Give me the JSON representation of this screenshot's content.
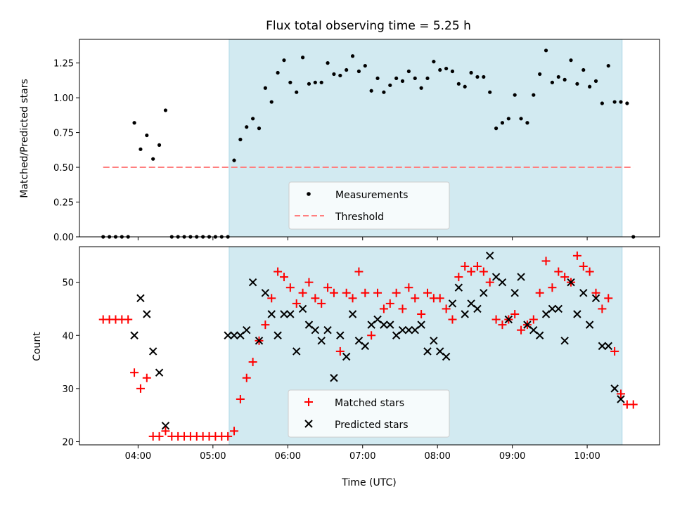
{
  "chart_data": [
    {
      "type": "scatter",
      "title": "Flux total observing time = 5.25 h",
      "xlabel": "",
      "ylabel": "Matched/Predicted stars",
      "xlim": [
        "03:13",
        "10:58"
      ],
      "ylim": [
        0,
        1.42
      ],
      "xticks": [
        "04:00",
        "05:00",
        "06:00",
        "07:00",
        "08:00",
        "09:00",
        "10:00"
      ],
      "yticks": [
        0.0,
        0.25,
        0.5,
        0.75,
        1.0,
        1.25
      ],
      "ytick_labels": [
        "0.00",
        "0.25",
        "0.50",
        "0.75",
        "1.00",
        "1.25"
      ],
      "shaded_region": {
        "start": "05:13",
        "end": "10:28",
        "color": "#add8e6"
      },
      "legend_position": "lower center",
      "series": [
        {
          "name": "Measurements",
          "kind": "scatter",
          "marker": "dot",
          "color": "#000000",
          "x": [
            "03:32",
            "03:37",
            "03:42",
            "03:47",
            "03:52",
            "03:57",
            "04:02",
            "04:07",
            "04:12",
            "04:17",
            "04:22",
            "04:27",
            "04:32",
            "04:37",
            "04:42",
            "04:47",
            "04:52",
            "04:57",
            "05:02",
            "05:07",
            "05:12",
            "05:17",
            "05:22",
            "05:27",
            "05:32",
            "05:37",
            "05:42",
            "05:47",
            "05:52",
            "05:57",
            "06:02",
            "06:07",
            "06:12",
            "06:17",
            "06:22",
            "06:27",
            "06:32",
            "06:37",
            "06:42",
            "06:47",
            "06:52",
            "06:57",
            "07:02",
            "07:07",
            "07:12",
            "07:17",
            "07:22",
            "07:27",
            "07:32",
            "07:37",
            "07:42",
            "07:47",
            "07:52",
            "07:57",
            "08:02",
            "08:07",
            "08:12",
            "08:17",
            "08:22",
            "08:27",
            "08:32",
            "08:37",
            "08:42",
            "08:47",
            "08:52",
            "08:57",
            "09:02",
            "09:07",
            "09:12",
            "09:17",
            "09:22",
            "09:27",
            "09:32",
            "09:37",
            "09:42",
            "09:47",
            "09:52",
            "09:57",
            "10:02",
            "10:07",
            "10:12",
            "10:17",
            "10:22",
            "10:27",
            "10:32",
            "10:37"
          ],
          "y": [
            0.0,
            0.0,
            0.0,
            0.0,
            0.0,
            0.82,
            0.63,
            0.73,
            0.56,
            0.66,
            0.91,
            0.0,
            0.0,
            0.0,
            0.0,
            0.0,
            0.0,
            0.0,
            0.0,
            0.0,
            0.0,
            0.55,
            0.7,
            0.79,
            0.85,
            0.78,
            1.07,
            0.97,
            1.18,
            1.27,
            1.11,
            1.04,
            1.29,
            1.1,
            1.11,
            1.11,
            1.25,
            1.17,
            1.16,
            1.2,
            1.3,
            1.19,
            1.23,
            1.05,
            1.14,
            1.04,
            1.09,
            1.14,
            1.12,
            1.19,
            1.14,
            1.07,
            1.14,
            1.26,
            1.2,
            1.21,
            1.19,
            1.1,
            1.08,
            1.18,
            1.15,
            1.15,
            1.04,
            0.78,
            0.82,
            0.85,
            1.02,
            0.85,
            0.82,
            1.02,
            1.17,
            1.34,
            1.11,
            1.15,
            1.13,
            1.27,
            1.1,
            1.2,
            1.08,
            1.12,
            0.96,
            1.23,
            0.97,
            0.97,
            0.96,
            0.0
          ]
        },
        {
          "name": "Threshold",
          "kind": "line",
          "dash": "dashed",
          "color": "#ff7f7f",
          "x": [
            "03:32",
            "10:37"
          ],
          "y": [
            0.5,
            0.5
          ]
        }
      ]
    },
    {
      "type": "scatter",
      "title": "",
      "xlabel": "Time (UTC)",
      "ylabel": "Count",
      "xlim": [
        "03:13",
        "10:58"
      ],
      "ylim": [
        19.4,
        56.7
      ],
      "xticks": [
        "04:00",
        "05:00",
        "06:00",
        "07:00",
        "08:00",
        "09:00",
        "10:00"
      ],
      "yticks": [
        20,
        30,
        40,
        50
      ],
      "ytick_labels": [
        "20",
        "30",
        "40",
        "50"
      ],
      "shaded_region": {
        "start": "05:13",
        "end": "10:28",
        "color": "#add8e6"
      },
      "legend_position": "lower center",
      "series": [
        {
          "name": "Matched stars",
          "kind": "scatter",
          "marker": "plus",
          "color": "#ff0000",
          "x": [
            "03:32",
            "03:37",
            "03:42",
            "03:47",
            "03:52",
            "03:57",
            "04:02",
            "04:07",
            "04:12",
            "04:17",
            "04:22",
            "04:27",
            "04:32",
            "04:37",
            "04:42",
            "04:47",
            "04:52",
            "04:57",
            "05:02",
            "05:07",
            "05:12",
            "05:17",
            "05:22",
            "05:27",
            "05:32",
            "05:37",
            "05:42",
            "05:47",
            "05:52",
            "05:57",
            "06:02",
            "06:07",
            "06:12",
            "06:17",
            "06:22",
            "06:27",
            "06:32",
            "06:37",
            "06:42",
            "06:47",
            "06:52",
            "06:57",
            "07:02",
            "07:07",
            "07:12",
            "07:17",
            "07:22",
            "07:27",
            "07:32",
            "07:37",
            "07:42",
            "07:47",
            "07:52",
            "07:57",
            "08:02",
            "08:07",
            "08:12",
            "08:17",
            "08:22",
            "08:27",
            "08:32",
            "08:37",
            "08:42",
            "08:47",
            "08:52",
            "08:57",
            "09:02",
            "09:07",
            "09:12",
            "09:17",
            "09:22",
            "09:27",
            "09:32",
            "09:37",
            "09:42",
            "09:47",
            "09:52",
            "09:57",
            "10:02",
            "10:07",
            "10:12",
            "10:17",
            "10:22",
            "10:27",
            "10:32",
            "10:37"
          ],
          "y": [
            43,
            43,
            43,
            43,
            43,
            33,
            30,
            32,
            21,
            21,
            22,
            21,
            21,
            21,
            21,
            21,
            21,
            21,
            21,
            21,
            21,
            22,
            28,
            32,
            35,
            39,
            42,
            47,
            52,
            51,
            49,
            46,
            48,
            50,
            47,
            46,
            49,
            48,
            37,
            48,
            47,
            52,
            48,
            40,
            48,
            45,
            46,
            48,
            45,
            49,
            47,
            44,
            48,
            47,
            47,
            45,
            43,
            51,
            53,
            52,
            53,
            52,
            50,
            43,
            42,
            43,
            44,
            41,
            42,
            43,
            48,
            54,
            49,
            52,
            51,
            50,
            55,
            53,
            52,
            48,
            45,
            47,
            37,
            29,
            27,
            27
          ]
        },
        {
          "name": "Predicted stars",
          "kind": "scatter",
          "marker": "x",
          "color": "#000000",
          "x": [
            "03:57",
            "04:02",
            "04:07",
            "04:12",
            "04:17",
            "04:22",
            "05:12",
            "05:17",
            "05:22",
            "05:27",
            "05:32",
            "05:37",
            "05:42",
            "05:47",
            "05:52",
            "05:57",
            "06:02",
            "06:07",
            "06:12",
            "06:17",
            "06:22",
            "06:27",
            "06:32",
            "06:37",
            "06:42",
            "06:47",
            "06:52",
            "06:57",
            "07:02",
            "07:07",
            "07:12",
            "07:17",
            "07:22",
            "07:27",
            "07:32",
            "07:37",
            "07:42",
            "07:47",
            "07:52",
            "07:57",
            "08:02",
            "08:07",
            "08:12",
            "08:17",
            "08:22",
            "08:27",
            "08:32",
            "08:37",
            "08:42",
            "08:47",
            "08:52",
            "08:57",
            "09:02",
            "09:07",
            "09:12",
            "09:17",
            "09:22",
            "09:27",
            "09:32",
            "09:37",
            "09:42",
            "09:47",
            "09:52",
            "09:57",
            "10:02",
            "10:07",
            "10:12",
            "10:17",
            "10:22",
            "10:27"
          ],
          "y": [
            40,
            47,
            44,
            37,
            33,
            23,
            40,
            40,
            40,
            41,
            50,
            39,
            48,
            44,
            40,
            44,
            44,
            37,
            45,
            42,
            41,
            39,
            41,
            32,
            40,
            36,
            44,
            39,
            38,
            42,
            43,
            42,
            42,
            40,
            41,
            41,
            41,
            42,
            37,
            39,
            37,
            36,
            46,
            49,
            44,
            46,
            45,
            48,
            55,
            51,
            50,
            43,
            48,
            51,
            42,
            41,
            40,
            44,
            45,
            45,
            39,
            50,
            44,
            48,
            42,
            47,
            38,
            38,
            30,
            28
          ]
        }
      ]
    }
  ]
}
